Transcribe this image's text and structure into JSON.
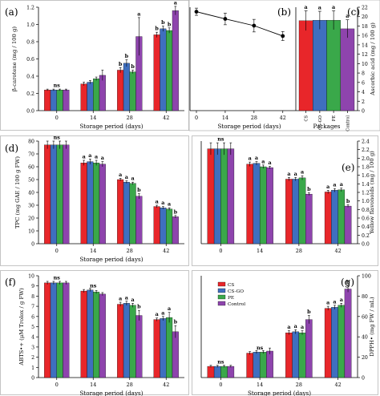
{
  "colors": {
    "CS": "#e8262a",
    "CS-GO": "#3f6fbf",
    "PE": "#3aa84a",
    "Control": "#8e44ad"
  },
  "legend": [
    "CS",
    "CS-GO",
    "PE",
    "Control"
  ],
  "panels": [
    {
      "id": "a",
      "label": "(a)",
      "type": "bar",
      "categories": [
        "0",
        "14",
        "28",
        "42"
      ],
      "xlabel": "Storage period (days)",
      "ylabel": "β-carotene (mg / 100 g)",
      "ylim": [
        0,
        1.2
      ],
      "yticks": [
        "0.0",
        "0.2",
        "0.4",
        "0.6",
        "0.8",
        "1.0",
        "1.2"
      ],
      "series": [
        {
          "name": "CS",
          "values": [
            0.24,
            0.31,
            0.47,
            0.88
          ],
          "err": [
            0.01,
            0.02,
            0.03,
            0.03
          ]
        },
        {
          "name": "CS-GO",
          "values": [
            0.24,
            0.33,
            0.55,
            0.95
          ],
          "err": [
            0.01,
            0.02,
            0.04,
            0.03
          ]
        },
        {
          "name": "PE",
          "values": [
            0.24,
            0.37,
            0.45,
            0.93
          ],
          "err": [
            0.01,
            0.02,
            0.02,
            0.03
          ]
        },
        {
          "name": "Control",
          "values": [
            0.24,
            0.41,
            0.86,
            1.16
          ],
          "err": [
            0.01,
            0.06,
            0.22,
            0.05
          ]
        }
      ],
      "annotations": [
        [
          "ns",
          "",
          "",
          ""
        ],
        [
          "",
          "",
          "",
          ""
        ],
        [
          "b",
          "b",
          "b",
          "a"
        ],
        [
          "b",
          "b",
          "b",
          "a"
        ]
      ]
    },
    {
      "id": "b",
      "label": "(b)",
      "type": "line",
      "x": [
        0,
        14,
        28,
        42
      ],
      "xlabel": "Storage period (days)",
      "ylim": [
        0,
        23
      ],
      "values": [
        22.0,
        20.4,
        18.9,
        16.6
      ],
      "err": [
        0.8,
        1.3,
        1.4,
        1.0
      ]
    },
    {
      "id": "c",
      "label": "(c)",
      "type": "bar",
      "categories": [
        "CS",
        "CS-GO",
        "PE",
        "Control"
      ],
      "xlabel": "Packages",
      "ylabel": "Ascorbic acid (mg / 100 g)",
      "ylim": [
        0,
        23
      ],
      "yticks": [
        "0",
        "2",
        "4",
        "6",
        "8",
        "10",
        "12",
        "14",
        "16",
        "18",
        "20",
        "22"
      ],
      "values": [
        20.0,
        20.1,
        20.1,
        18.2
      ],
      "err": [
        2.2,
        2.0,
        2.1,
        2.0
      ],
      "annotations": [
        "a",
        "a",
        "a",
        "a"
      ]
    },
    {
      "id": "d",
      "label": "(d)",
      "type": "bar",
      "categories": [
        "0",
        "14",
        "28",
        "42"
      ],
      "xlabel": "Storage period (days)",
      "ylabel": "TPC (mg GAE / 100 g FW)",
      "ylim": [
        0,
        80
      ],
      "yticks": [
        "0",
        "10",
        "20",
        "30",
        "40",
        "50",
        "60",
        "70",
        "80"
      ],
      "series": [
        {
          "name": "CS",
          "values": [
            77,
            63,
            50,
            29
          ],
          "err": [
            3,
            2,
            1,
            1
          ]
        },
        {
          "name": "CS-GO",
          "values": [
            77,
            64,
            48,
            28
          ],
          "err": [
            3,
            2,
            1,
            1
          ]
        },
        {
          "name": "PE",
          "values": [
            77,
            63,
            47,
            27
          ],
          "err": [
            3,
            2,
            1,
            1
          ]
        },
        {
          "name": "Control",
          "values": [
            77,
            62,
            37,
            21
          ],
          "err": [
            3,
            2,
            2,
            1
          ]
        }
      ],
      "annotations": [
        [
          "ns",
          "",
          "",
          ""
        ],
        [
          "a",
          "a",
          "a",
          "a"
        ],
        [
          "a",
          "a",
          "a",
          "b"
        ],
        [
          "a",
          "a",
          "a",
          "b"
        ]
      ]
    },
    {
      "id": "e",
      "label": "(e)",
      "type": "bar",
      "categories": [
        "0",
        "14",
        "28",
        "42"
      ],
      "xlabel": "",
      "ylabel": "Yellow flavonoids (mg / 100 g)",
      "ylim": [
        0,
        2.4
      ],
      "yticks": [
        "0.0",
        "0.2",
        "0.4",
        "0.6",
        "0.8",
        "1.0",
        "1.2",
        "1.4",
        "1.6",
        "1.8",
        "2.0",
        "2.2",
        "2.4"
      ],
      "series": [
        {
          "name": "CS",
          "values": [
            2.22,
            1.86,
            1.51,
            1.21
          ],
          "err": [
            0.14,
            0.05,
            0.04,
            0.04
          ]
        },
        {
          "name": "CS-GO",
          "values": [
            2.22,
            1.88,
            1.51,
            1.25
          ],
          "err": [
            0.14,
            0.04,
            0.04,
            0.04
          ]
        },
        {
          "name": "PE",
          "values": [
            2.22,
            1.8,
            1.54,
            1.26
          ],
          "err": [
            0.14,
            0.04,
            0.05,
            0.04
          ]
        },
        {
          "name": "Control",
          "values": [
            2.22,
            1.78,
            1.16,
            0.88
          ],
          "err": [
            0.14,
            0.03,
            0.03,
            0.03
          ]
        }
      ],
      "annotations": [
        [
          "ns",
          "",
          "",
          ""
        ],
        [
          "a",
          "a",
          "a",
          "a"
        ],
        [
          "a",
          "a",
          "a",
          "b"
        ],
        [
          "a",
          "a",
          "a",
          "b"
        ]
      ]
    },
    {
      "id": "f",
      "label": "(f)",
      "type": "bar",
      "categories": [
        "0",
        "14",
        "28",
        "42"
      ],
      "xlabel": "Storage period (days)",
      "ylabel": "ABTS•+ (μM Trolox / g FW)",
      "ylim": [
        0,
        10
      ],
      "yticks": [
        "0",
        "1",
        "2",
        "3",
        "4",
        "5",
        "6",
        "7",
        "8",
        "9",
        "10"
      ],
      "series": [
        {
          "name": "CS",
          "values": [
            9.3,
            8.5,
            7.2,
            5.7
          ],
          "err": [
            0.15,
            0.15,
            0.2,
            0.15
          ]
        },
        {
          "name": "CS-GO",
          "values": [
            9.3,
            8.6,
            7.3,
            5.8
          ],
          "err": [
            0.15,
            0.15,
            0.2,
            0.2
          ]
        },
        {
          "name": "PE",
          "values": [
            9.3,
            8.4,
            7.1,
            5.9
          ],
          "err": [
            0.15,
            0.15,
            0.2,
            0.5
          ]
        },
        {
          "name": "Control",
          "values": [
            9.3,
            8.2,
            6.1,
            4.5
          ],
          "err": [
            0.15,
            0.15,
            0.5,
            0.6
          ]
        }
      ],
      "annotations": [
        [
          "ns",
          "",
          "",
          ""
        ],
        [
          "ns",
          "",
          "",
          ""
        ],
        [
          "a",
          "a",
          "a",
          "b"
        ],
        [
          "a",
          "a",
          "a",
          "b"
        ]
      ]
    },
    {
      "id": "g",
      "label": "(g)",
      "type": "bar",
      "categories": [
        "0",
        "14",
        "28",
        "42"
      ],
      "xlabel": "Storage period (days)",
      "ylabel": "DPPH• (mg FW / mL)",
      "ylim": [
        0,
        100
      ],
      "yticks": [
        "0",
        "20",
        "40",
        "60",
        "80",
        "100"
      ],
      "series": [
        {
          "name": "CS",
          "values": [
            11,
            24,
            44,
            68
          ],
          "err": [
            1,
            1.5,
            2,
            2
          ]
        },
        {
          "name": "CS-GO",
          "values": [
            11,
            25,
            45,
            69
          ],
          "err": [
            1,
            1.5,
            2,
            2
          ]
        },
        {
          "name": "PE",
          "values": [
            11,
            25,
            44,
            71
          ],
          "err": [
            1,
            1.5,
            2,
            2
          ]
        },
        {
          "name": "Control",
          "values": [
            11,
            26,
            57,
            87
          ],
          "err": [
            1,
            3,
            4,
            3
          ]
        }
      ],
      "annotations": [
        [
          "ns",
          "",
          "",
          ""
        ],
        [
          "ns",
          "",
          "",
          ""
        ],
        [
          "a",
          "a",
          "a",
          "b"
        ],
        [
          "a",
          "a",
          "a",
          "b"
        ]
      ]
    }
  ]
}
